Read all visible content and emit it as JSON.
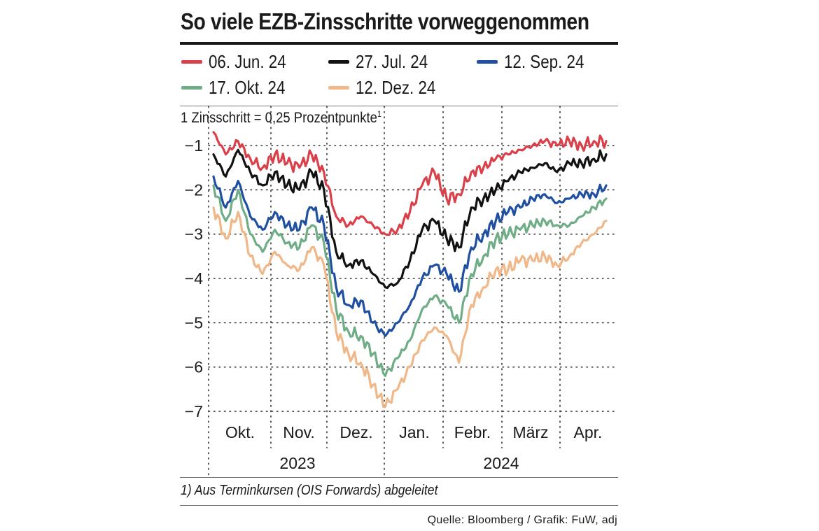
{
  "title": "So viele EZB-Zinsschritte vorweggenommen",
  "unit_label": "1 Zinsschritt = 0,25 Prozentpunkte",
  "unit_label_sup": "1",
  "footnote": "1) Aus Terminkursen (OIS Forwards) abgeleitet",
  "source": "Quelle: Bloomberg / Grafik: FuW, adj",
  "colors": {
    "red": "#d9404a",
    "black": "#111111",
    "blue": "#1f4fa0",
    "green": "#6fad87",
    "orange": "#f0b888",
    "grid": "#333333"
  },
  "chart_data": {
    "type": "line",
    "title": "So viele EZB-Zinsschritte vorweggenommen",
    "ylabel": "1 Zinsschritt = 0,25 Prozentpunkte",
    "ylim": [
      -7.3,
      -0.6
    ],
    "y_ticks": [
      -1,
      -2,
      -3,
      -4,
      -5,
      -6,
      -7
    ],
    "y_tick_labels": [
      "−1",
      "−2",
      "−3",
      "−4",
      "−5",
      "−6",
      "−7"
    ],
    "x_months": [
      "Okt.",
      "Nov.",
      "Dez.",
      "Jan.",
      "Febr.",
      "März",
      "Apr."
    ],
    "x_years": [
      "2023",
      "2024"
    ],
    "x_index": [
      0,
      6,
      12,
      18,
      24,
      30,
      36,
      42,
      48,
      54,
      60,
      66,
      72,
      78,
      84,
      90,
      96,
      102,
      108,
      114,
      120,
      126,
      132,
      138,
      144,
      150,
      156,
      162,
      168,
      174,
      180,
      186,
      192
    ],
    "series": [
      {
        "name": "06. Jun. 24",
        "color_key": "red",
        "values": [
          -0.7,
          -1.2,
          -0.9,
          -1.3,
          -1.5,
          -1.2,
          -1.4,
          -1.5,
          -1.2,
          -1.6,
          -2.6,
          -2.8,
          -2.6,
          -2.8,
          -3.0,
          -2.9,
          -2.5,
          -1.9,
          -1.6,
          -2.2,
          -2.1,
          -1.6,
          -1.5,
          -1.3,
          -1.2,
          -1.1,
          -1.0,
          -0.9,
          -1.0,
          -0.9,
          -1.0,
          -0.9,
          -0.9
        ]
      },
      {
        "name": "27. Jul. 24",
        "color_key": "black",
        "values": [
          -1.2,
          -1.7,
          -1.1,
          -1.6,
          -1.9,
          -1.6,
          -1.9,
          -2.0,
          -1.6,
          -2.0,
          -3.4,
          -3.7,
          -3.6,
          -3.9,
          -4.2,
          -4.1,
          -3.6,
          -2.9,
          -2.7,
          -3.1,
          -3.3,
          -2.4,
          -2.2,
          -2.0,
          -1.8,
          -1.6,
          -1.5,
          -1.4,
          -1.6,
          -1.4,
          -1.4,
          -1.3,
          -1.2
        ]
      },
      {
        "name": "12. Sep. 24",
        "color_key": "blue",
        "values": [
          -1.7,
          -2.4,
          -1.8,
          -2.6,
          -2.9,
          -2.5,
          -2.8,
          -2.9,
          -2.4,
          -2.8,
          -4.2,
          -4.6,
          -4.5,
          -5.0,
          -5.3,
          -5.0,
          -4.6,
          -4.0,
          -3.7,
          -3.9,
          -4.3,
          -3.3,
          -3.0,
          -2.7,
          -2.5,
          -2.4,
          -2.2,
          -2.1,
          -2.3,
          -2.2,
          -2.1,
          -2.1,
          -1.9
        ]
      },
      {
        "name": "17. Okt. 24",
        "color_key": "green",
        "values": [
          -1.9,
          -2.7,
          -2.0,
          -3.0,
          -3.4,
          -2.9,
          -3.2,
          -3.3,
          -2.8,
          -3.2,
          -4.7,
          -5.2,
          -5.3,
          -5.7,
          -6.2,
          -5.8,
          -5.4,
          -4.7,
          -4.4,
          -4.6,
          -5.0,
          -3.9,
          -3.5,
          -3.1,
          -3.0,
          -2.9,
          -2.8,
          -2.7,
          -2.8,
          -2.8,
          -2.6,
          -2.4,
          -2.2
        ]
      },
      {
        "name": "12. Dez. 24",
        "color_key": "orange",
        "values": [
          -2.4,
          -3.1,
          -2.5,
          -3.5,
          -3.9,
          -3.4,
          -3.7,
          -3.8,
          -3.3,
          -3.7,
          -5.2,
          -5.7,
          -5.9,
          -6.4,
          -6.9,
          -6.5,
          -6.0,
          -5.4,
          -5.1,
          -5.3,
          -5.9,
          -4.6,
          -4.2,
          -3.8,
          -3.8,
          -3.6,
          -3.6,
          -3.5,
          -3.7,
          -3.5,
          -3.2,
          -3.0,
          -2.7
        ]
      }
    ]
  }
}
